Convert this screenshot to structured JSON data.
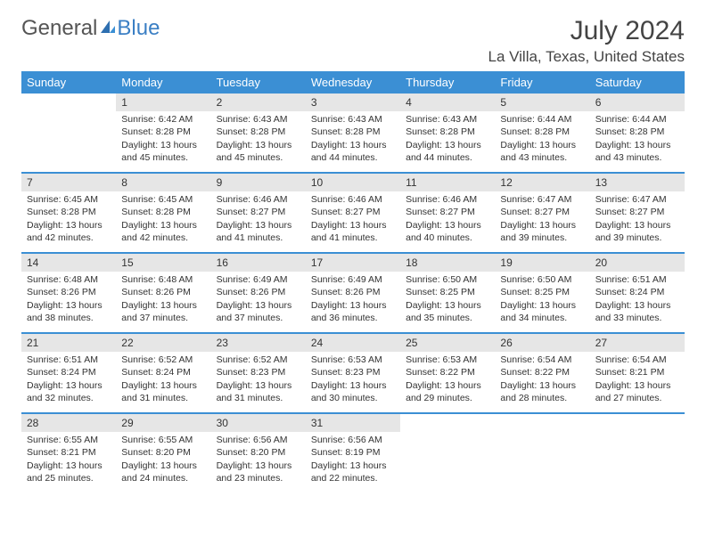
{
  "brand": {
    "part1": "General",
    "part2": "Blue"
  },
  "title": "July 2024",
  "location": "La Villa, Texas, United States",
  "colors": {
    "header_bg": "#3b8fd4",
    "header_text": "#ffffff",
    "daynum_bg": "#e6e6e6",
    "text": "#333333",
    "week_border": "#3b8fd4",
    "brand_gray": "#555555",
    "brand_blue": "#3b7fc4"
  },
  "dayNames": [
    "Sunday",
    "Monday",
    "Tuesday",
    "Wednesday",
    "Thursday",
    "Friday",
    "Saturday"
  ],
  "layout": {
    "startOffset": 1,
    "daysInMonth": 31
  },
  "labels": {
    "sunrise": "Sunrise: ",
    "sunset": "Sunset: ",
    "daylight": "Daylight: "
  },
  "days": {
    "1": {
      "sunrise": "6:42 AM",
      "sunset": "8:28 PM",
      "daylight": "13 hours and 45 minutes."
    },
    "2": {
      "sunrise": "6:43 AM",
      "sunset": "8:28 PM",
      "daylight": "13 hours and 45 minutes."
    },
    "3": {
      "sunrise": "6:43 AM",
      "sunset": "8:28 PM",
      "daylight": "13 hours and 44 minutes."
    },
    "4": {
      "sunrise": "6:43 AM",
      "sunset": "8:28 PM",
      "daylight": "13 hours and 44 minutes."
    },
    "5": {
      "sunrise": "6:44 AM",
      "sunset": "8:28 PM",
      "daylight": "13 hours and 43 minutes."
    },
    "6": {
      "sunrise": "6:44 AM",
      "sunset": "8:28 PM",
      "daylight": "13 hours and 43 minutes."
    },
    "7": {
      "sunrise": "6:45 AM",
      "sunset": "8:28 PM",
      "daylight": "13 hours and 42 minutes."
    },
    "8": {
      "sunrise": "6:45 AM",
      "sunset": "8:28 PM",
      "daylight": "13 hours and 42 minutes."
    },
    "9": {
      "sunrise": "6:46 AM",
      "sunset": "8:27 PM",
      "daylight": "13 hours and 41 minutes."
    },
    "10": {
      "sunrise": "6:46 AM",
      "sunset": "8:27 PM",
      "daylight": "13 hours and 41 minutes."
    },
    "11": {
      "sunrise": "6:46 AM",
      "sunset": "8:27 PM",
      "daylight": "13 hours and 40 minutes."
    },
    "12": {
      "sunrise": "6:47 AM",
      "sunset": "8:27 PM",
      "daylight": "13 hours and 39 minutes."
    },
    "13": {
      "sunrise": "6:47 AM",
      "sunset": "8:27 PM",
      "daylight": "13 hours and 39 minutes."
    },
    "14": {
      "sunrise": "6:48 AM",
      "sunset": "8:26 PM",
      "daylight": "13 hours and 38 minutes."
    },
    "15": {
      "sunrise": "6:48 AM",
      "sunset": "8:26 PM",
      "daylight": "13 hours and 37 minutes."
    },
    "16": {
      "sunrise": "6:49 AM",
      "sunset": "8:26 PM",
      "daylight": "13 hours and 37 minutes."
    },
    "17": {
      "sunrise": "6:49 AM",
      "sunset": "8:26 PM",
      "daylight": "13 hours and 36 minutes."
    },
    "18": {
      "sunrise": "6:50 AM",
      "sunset": "8:25 PM",
      "daylight": "13 hours and 35 minutes."
    },
    "19": {
      "sunrise": "6:50 AM",
      "sunset": "8:25 PM",
      "daylight": "13 hours and 34 minutes."
    },
    "20": {
      "sunrise": "6:51 AM",
      "sunset": "8:24 PM",
      "daylight": "13 hours and 33 minutes."
    },
    "21": {
      "sunrise": "6:51 AM",
      "sunset": "8:24 PM",
      "daylight": "13 hours and 32 minutes."
    },
    "22": {
      "sunrise": "6:52 AM",
      "sunset": "8:24 PM",
      "daylight": "13 hours and 31 minutes."
    },
    "23": {
      "sunrise": "6:52 AM",
      "sunset": "8:23 PM",
      "daylight": "13 hours and 31 minutes."
    },
    "24": {
      "sunrise": "6:53 AM",
      "sunset": "8:23 PM",
      "daylight": "13 hours and 30 minutes."
    },
    "25": {
      "sunrise": "6:53 AM",
      "sunset": "8:22 PM",
      "daylight": "13 hours and 29 minutes."
    },
    "26": {
      "sunrise": "6:54 AM",
      "sunset": "8:22 PM",
      "daylight": "13 hours and 28 minutes."
    },
    "27": {
      "sunrise": "6:54 AM",
      "sunset": "8:21 PM",
      "daylight": "13 hours and 27 minutes."
    },
    "28": {
      "sunrise": "6:55 AM",
      "sunset": "8:21 PM",
      "daylight": "13 hours and 25 minutes."
    },
    "29": {
      "sunrise": "6:55 AM",
      "sunset": "8:20 PM",
      "daylight": "13 hours and 24 minutes."
    },
    "30": {
      "sunrise": "6:56 AM",
      "sunset": "8:20 PM",
      "daylight": "13 hours and 23 minutes."
    },
    "31": {
      "sunrise": "6:56 AM",
      "sunset": "8:19 PM",
      "daylight": "13 hours and 22 minutes."
    }
  }
}
